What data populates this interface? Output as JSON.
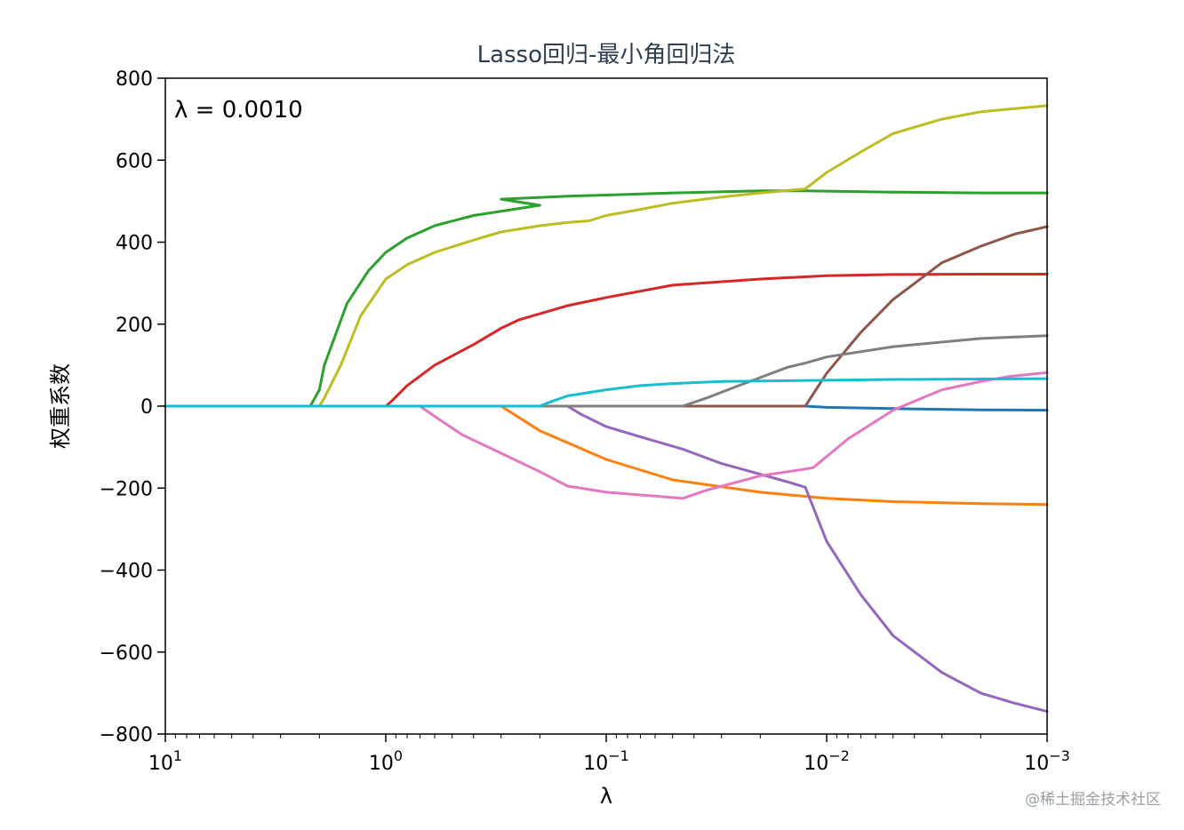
{
  "chart_data": {
    "type": "line",
    "title": "Lasso回归-最小角回归法",
    "xlabel": "λ",
    "ylabel": "权重系数",
    "x_scale": "log",
    "x_reversed": true,
    "xlim": [
      10,
      0.001
    ],
    "ylim": [
      -800,
      800
    ],
    "xticks": [
      {
        "value": 10,
        "base": "10",
        "exp": "1"
      },
      {
        "value": 1,
        "base": "10",
        "exp": "0"
      },
      {
        "value": 0.1,
        "base": "10",
        "exp": "−1"
      },
      {
        "value": 0.01,
        "base": "10",
        "exp": "−2"
      },
      {
        "value": 0.001,
        "base": "10",
        "exp": "−3"
      }
    ],
    "yticks": [
      {
        "value": 800,
        "label": "800"
      },
      {
        "value": 600,
        "label": "600"
      },
      {
        "value": 400,
        "label": "400"
      },
      {
        "value": 200,
        "label": "200"
      },
      {
        "value": 0,
        "label": "0"
      },
      {
        "value": -200,
        "label": "−200"
      },
      {
        "value": -400,
        "label": "−400"
      },
      {
        "value": -600,
        "label": "−600"
      },
      {
        "value": -800,
        "label": "−800"
      }
    ],
    "grid": false,
    "annotation": "λ = 0.0010",
    "series": [
      {
        "color": "#1f77b4",
        "points": [
          [
            10,
            0
          ],
          [
            0.0125,
            0
          ],
          [
            0.01,
            -3
          ],
          [
            0.005,
            -6
          ],
          [
            0.002,
            -9
          ],
          [
            0.001,
            -10
          ]
        ]
      },
      {
        "color": "#ff7f0e",
        "points": [
          [
            10,
            0
          ],
          [
            0.3,
            0
          ],
          [
            0.2,
            -60
          ],
          [
            0.1,
            -130
          ],
          [
            0.05,
            -180
          ],
          [
            0.02,
            -210
          ],
          [
            0.01,
            -225
          ],
          [
            0.005,
            -233
          ],
          [
            0.002,
            -238
          ],
          [
            0.001,
            -240
          ]
        ]
      },
      {
        "color": "#2ca02c",
        "points": [
          [
            10,
            0
          ],
          [
            2.2,
            0
          ],
          [
            2,
            40
          ],
          [
            1.9,
            100
          ],
          [
            1.5,
            250
          ],
          [
            1.2,
            330
          ],
          [
            1,
            375
          ],
          [
            0.8,
            410
          ],
          [
            0.6,
            440
          ],
          [
            0.4,
            465
          ],
          [
            0.2,
            490
          ],
          [
            0.3,
            505
          ],
          [
            0.15,
            512
          ],
          [
            0.1,
            515
          ],
          [
            0.05,
            520
          ],
          [
            0.02,
            525
          ],
          [
            0.0125,
            525
          ],
          [
            0.005,
            522
          ],
          [
            0.002,
            520
          ],
          [
            0.001,
            520
          ]
        ]
      },
      {
        "color": "#d62728",
        "points": [
          [
            10,
            0
          ],
          [
            1,
            0
          ],
          [
            0.95,
            10
          ],
          [
            0.8,
            50
          ],
          [
            0.6,
            100
          ],
          [
            0.4,
            150
          ],
          [
            0.3,
            190
          ],
          [
            0.25,
            210
          ],
          [
            0.15,
            245
          ],
          [
            0.1,
            265
          ],
          [
            0.05,
            295
          ],
          [
            0.02,
            310
          ],
          [
            0.01,
            318
          ],
          [
            0.005,
            321
          ],
          [
            0.002,
            322
          ],
          [
            0.001,
            322
          ]
        ]
      },
      {
        "color": "#9467bd",
        "points": [
          [
            10,
            0
          ],
          [
            0.15,
            0
          ],
          [
            0.13,
            -20
          ],
          [
            0.1,
            -50
          ],
          [
            0.07,
            -75
          ],
          [
            0.045,
            -105
          ],
          [
            0.03,
            -140
          ],
          [
            0.015,
            -185
          ],
          [
            0.0125,
            -198
          ],
          [
            0.01,
            -330
          ],
          [
            0.007,
            -460
          ],
          [
            0.005,
            -560
          ],
          [
            0.003,
            -650
          ],
          [
            0.002,
            -700
          ],
          [
            0.0014,
            -725
          ],
          [
            0.001,
            -745
          ]
        ]
      },
      {
        "color": "#8c564b",
        "points": [
          [
            10,
            0
          ],
          [
            0.0125,
            0
          ],
          [
            0.01,
            80
          ],
          [
            0.007,
            180
          ],
          [
            0.005,
            260
          ],
          [
            0.003,
            350
          ],
          [
            0.002,
            390
          ],
          [
            0.0014,
            420
          ],
          [
            0.001,
            438
          ]
        ]
      },
      {
        "color": "#e377c2",
        "points": [
          [
            10,
            0
          ],
          [
            0.7,
            0
          ],
          [
            0.6,
            -25
          ],
          [
            0.45,
            -70
          ],
          [
            0.3,
            -115
          ],
          [
            0.2,
            -160
          ],
          [
            0.15,
            -195
          ],
          [
            0.1,
            -210
          ],
          [
            0.045,
            -225
          ],
          [
            0.035,
            -205
          ],
          [
            0.02,
            -170
          ],
          [
            0.013,
            -155
          ],
          [
            0.0115,
            -150
          ],
          [
            0.008,
            -80
          ],
          [
            0.005,
            -10
          ],
          [
            0.003,
            40
          ],
          [
            0.002,
            60
          ],
          [
            0.0015,
            72
          ],
          [
            0.001,
            82
          ]
        ]
      },
      {
        "color": "#7f7f7f",
        "points": [
          [
            10,
            0
          ],
          [
            0.045,
            0
          ],
          [
            0.035,
            20
          ],
          [
            0.025,
            50
          ],
          [
            0.015,
            95
          ],
          [
            0.0125,
            105
          ],
          [
            0.01,
            120
          ],
          [
            0.005,
            145
          ],
          [
            0.002,
            165
          ],
          [
            0.001,
            172
          ]
        ]
      },
      {
        "color": "#bcbd22",
        "points": [
          [
            10,
            0
          ],
          [
            2,
            0
          ],
          [
            1.9,
            20
          ],
          [
            1.6,
            100
          ],
          [
            1.3,
            220
          ],
          [
            1,
            310
          ],
          [
            0.8,
            345
          ],
          [
            0.6,
            375
          ],
          [
            0.4,
            405
          ],
          [
            0.3,
            425
          ],
          [
            0.2,
            440
          ],
          [
            0.15,
            448
          ],
          [
            0.12,
            452
          ],
          [
            0.1,
            465
          ],
          [
            0.07,
            480
          ],
          [
            0.05,
            495
          ],
          [
            0.03,
            510
          ],
          [
            0.02,
            520
          ],
          [
            0.0125,
            530
          ],
          [
            0.01,
            570
          ],
          [
            0.007,
            620
          ],
          [
            0.005,
            665
          ],
          [
            0.003,
            700
          ],
          [
            0.002,
            718
          ],
          [
            0.001,
            733
          ]
        ]
      },
      {
        "color": "#17becf",
        "points": [
          [
            10,
            0
          ],
          [
            0.2,
            0
          ],
          [
            0.18,
            10
          ],
          [
            0.15,
            25
          ],
          [
            0.1,
            40
          ],
          [
            0.07,
            50
          ],
          [
            0.05,
            55
          ],
          [
            0.03,
            60
          ],
          [
            0.01,
            63
          ],
          [
            0.005,
            65
          ],
          [
            0.001,
            67
          ]
        ]
      }
    ]
  },
  "watermark": "@稀土掘金技术社区"
}
